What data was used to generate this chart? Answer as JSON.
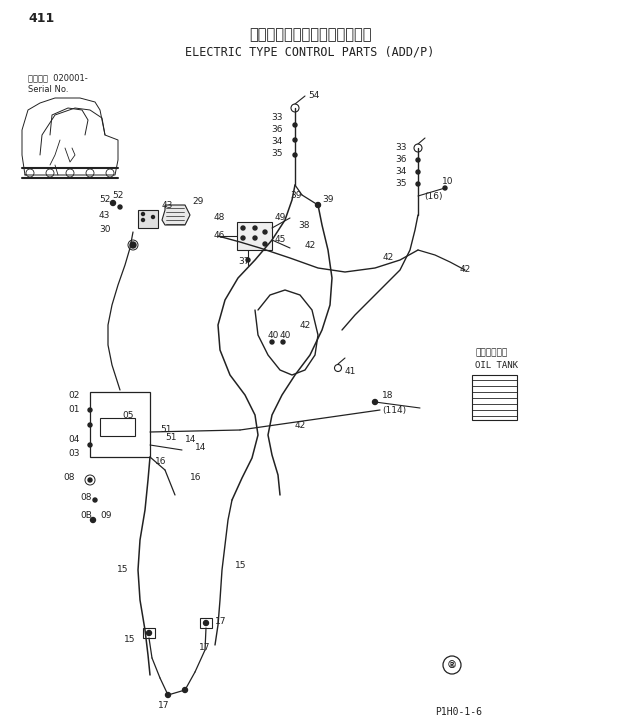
{
  "title_jp": "電気式操作用品（ＡＤＤ／Ｐ）",
  "title_en": "ELECTRIC TYPE CONTROL PARTS (ADD/P)",
  "page_num": "411",
  "serial_label": "通用号機  020001-",
  "serial_label2": "Serial No.",
  "part_code": "P1H0-1-6",
  "oil_tank_jp": "オイルタンク",
  "oil_tank_en": "OIL TANK",
  "bg_color": "#ffffff",
  "line_color": "#222222",
  "text_color": "#222222",
  "fig_w": 6.2,
  "fig_h": 7.24,
  "dpi": 100
}
